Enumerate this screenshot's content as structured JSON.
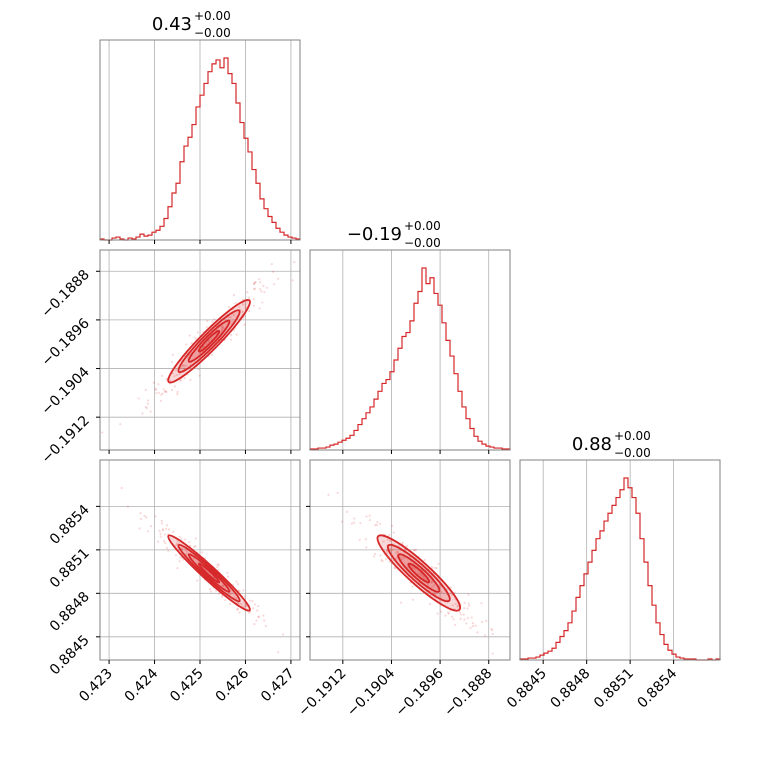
{
  "chart_data": {
    "type": "corner",
    "color": "#d62728",
    "parameters": [
      {
        "range": [
          0.4228,
          0.4272
        ],
        "ticks": [
          0.423,
          0.424,
          0.425,
          0.426,
          0.427
        ],
        "tick_labels": [
          "0.423",
          "0.424",
          "0.425",
          "0.426",
          "0.427"
        ],
        "title": {
          "value": "0.43",
          "upper": "+0.00",
          "lower": "−0.00"
        },
        "mean": 0.4252,
        "sd": 0.00045
      },
      {
        "range": [
          -0.19174,
          -0.18845
        ],
        "ticks": [
          -0.1912,
          -0.1904,
          -0.1896,
          -0.1888
        ],
        "tick_labels": [
          "−0.1912",
          "−0.1904",
          "−0.1896",
          "−0.1888"
        ],
        "title": {
          "value": "−0.19",
          "upper": "+0.00",
          "lower": "−0.00"
        },
        "mean": -0.18995,
        "sd": 0.00034
      },
      {
        "range": [
          0.88434,
          0.88572
        ],
        "ticks": [
          0.8845,
          0.8848,
          0.8851,
          0.8854
        ],
        "tick_labels": [
          "0.8845",
          "0.8848",
          "0.8851",
          "0.8854"
        ],
        "title": {
          "value": "0.88",
          "upper": "+0.00",
          "lower": "−0.00"
        },
        "mean": 0.88494,
        "sd": 0.00013
      }
    ],
    "histograms": [
      {
        "bins": 50,
        "counts": [
          1,
          0,
          0,
          2,
          3,
          1,
          0,
          2,
          1,
          3,
          6,
          4,
          5,
          8,
          10,
          14,
          22,
          34,
          48,
          58,
          80,
          96,
          105,
          118,
          136,
          148,
          160,
          172,
          180,
          184,
          176,
          186,
          170,
          160,
          140,
          120,
          104,
          90,
          72,
          58,
          42,
          32,
          24,
          18,
          12,
          8,
          5,
          3,
          2,
          1
        ]
      },
      {
        "bins": 50,
        "counts": [
          1,
          1,
          2,
          2,
          3,
          5,
          6,
          8,
          10,
          12,
          15,
          20,
          26,
          32,
          38,
          44,
          52,
          60,
          68,
          72,
          80,
          92,
          104,
          116,
          120,
          132,
          150,
          162,
          186,
          170,
          176,
          160,
          148,
          130,
          112,
          96,
          78,
          60,
          44,
          32,
          22,
          14,
          9,
          6,
          4,
          3,
          2,
          2,
          1,
          1
        ]
      },
      {
        "bins": 50,
        "counts": [
          1,
          1,
          2,
          2,
          3,
          5,
          7,
          9,
          12,
          18,
          24,
          30,
          38,
          50,
          64,
          76,
          88,
          100,
          112,
          124,
          132,
          142,
          150,
          158,
          166,
          174,
          186,
          176,
          166,
          150,
          124,
          100,
          76,
          56,
          38,
          26,
          16,
          10,
          6,
          3,
          2,
          1,
          1,
          1,
          0,
          0,
          0,
          1,
          0,
          1
        ]
      }
    ],
    "pairs": [
      {
        "x_param": 0,
        "y_param": 1,
        "correlation": 0.95
      },
      {
        "x_param": 0,
        "y_param": 2,
        "correlation": -0.97
      },
      {
        "x_param": 1,
        "y_param": 2,
        "correlation": -0.92
      }
    ]
  }
}
